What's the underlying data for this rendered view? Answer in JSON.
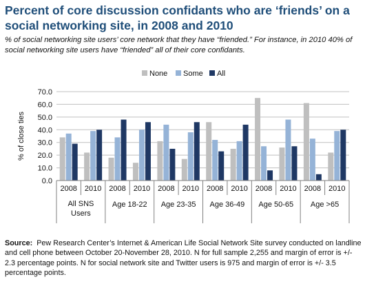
{
  "title": "Percent of core discussion confidants who are ‘friends’ on a social networking site, in 2008 and 2010",
  "subtitle": "% of social networking site users’ core network that they have “friended.” For instance, in 2010 40% of social networking site users have “friended” all of their core confidants.",
  "source": {
    "label": "Source:",
    "text": "Pew Research Center’s Internet & American Life Social Network Site survey conducted on landline and cell phone between October 20-November 28, 2010. N for full sample 2,255 and margin of error is +/- 2.3 percentage points. N for social network site and Twitter users is 975 and margin of error is +/- 3.5 percentage points."
  },
  "chart_data": {
    "type": "bar",
    "ylabel": "% of close ties",
    "ylim": [
      0,
      70
    ],
    "yticks": [
      "0.0",
      "10.0",
      "20.0",
      "30.0",
      "40.0",
      "50.0",
      "60.0",
      "70.0"
    ],
    "grid": true,
    "legend_position": "top-center",
    "categories": [
      "2008",
      "2010",
      "2008",
      "2010",
      "2008",
      "2010",
      "2008",
      "2010",
      "2008",
      "2010",
      "2008",
      "2010"
    ],
    "groups": [
      "All SNS Users",
      "Age 18-22",
      "Age 23-35",
      "Age 36-49",
      "Age 50-65",
      "Age >65"
    ],
    "series": [
      {
        "name": "None",
        "color": "#bfbfbf",
        "values": [
          34,
          22,
          18,
          14,
          31,
          17,
          46,
          25,
          65,
          26,
          61,
          22
        ]
      },
      {
        "name": "Some",
        "color": "#95b3d7",
        "values": [
          37,
          39,
          34,
          40,
          44,
          38,
          32,
          31,
          27,
          48,
          33,
          39
        ]
      },
      {
        "name": "All",
        "color": "#1f3864",
        "values": [
          29,
          40,
          48,
          46,
          25,
          46,
          23,
          44,
          8,
          27,
          5,
          40
        ]
      }
    ]
  }
}
